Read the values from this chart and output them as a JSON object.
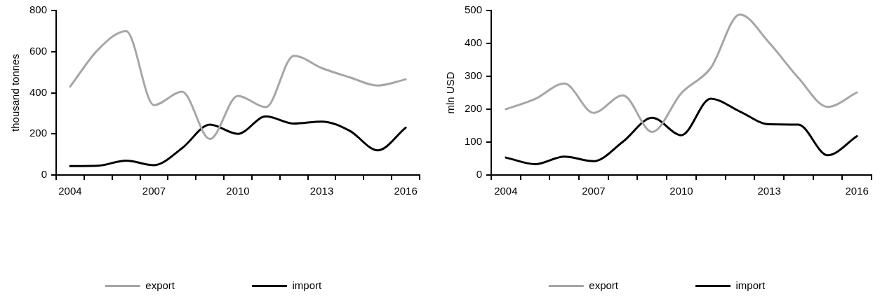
{
  "chart_data": [
    {
      "type": "line",
      "ylabel": "thousand tonnes",
      "categories": [
        "2004",
        null,
        null,
        "2007",
        null,
        null,
        "2010",
        null,
        null,
        "2013",
        null,
        null,
        "2016"
      ],
      "series": [
        {
          "name": "export",
          "color": "#a6a6a6",
          "values": [
            430,
            610,
            700,
            340,
            405,
            175,
            385,
            330,
            580,
            520,
            475,
            435,
            465
          ]
        },
        {
          "name": "import",
          "color": "#000000",
          "values": [
            43,
            45,
            70,
            48,
            130,
            245,
            200,
            285,
            250,
            260,
            215,
            120,
            230
          ]
        }
      ],
      "ylim": [
        0,
        800
      ],
      "yticks": [
        0,
        200,
        400,
        600,
        800
      ],
      "grid": false,
      "legend": "bottom",
      "marker": "none",
      "line_style": "solid"
    },
    {
      "type": "line",
      "ylabel": "mln USD",
      "categories": [
        "2004",
        null,
        null,
        "2007",
        null,
        null,
        "2010",
        null,
        null,
        "2013",
        null,
        null,
        "2016"
      ],
      "series": [
        {
          "name": "export",
          "color": "#a6a6a6",
          "values": [
            200,
            231,
            278,
            189,
            242,
            131,
            249,
            325,
            488,
            402,
            295,
            207,
            251
          ]
        },
        {
          "name": "import",
          "color": "#000000",
          "values": [
            53,
            33,
            56,
            42,
            101,
            174,
            121,
            232,
            193,
            154,
            153,
            60,
            118
          ]
        }
      ],
      "ylim": [
        0,
        500
      ],
      "yticks": [
        0,
        100,
        200,
        300,
        400,
        500
      ],
      "grid": false,
      "legend": "bottom",
      "marker": "none",
      "line_style": "solid"
    }
  ]
}
